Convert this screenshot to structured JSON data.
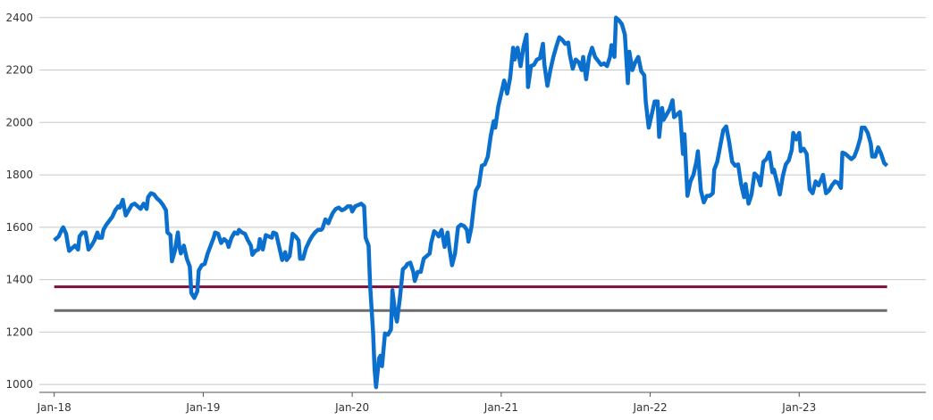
{
  "chart_data": {
    "type": "line",
    "title": "",
    "xlabel": "",
    "ylabel": "",
    "ylim": [
      970,
      2440
    ],
    "xlim": [
      -0.1,
      5.85
    ],
    "grid": "horizontal",
    "yticks": [
      1000,
      1200,
      1400,
      1600,
      1800,
      2000,
      2200,
      2400
    ],
    "xticks": [
      {
        "pos": 0,
        "label": "Jan-18"
      },
      {
        "pos": 1,
        "label": "Jan-19"
      },
      {
        "pos": 2,
        "label": "Jan-20"
      },
      {
        "pos": 3,
        "label": "Jan-21"
      },
      {
        "pos": 4,
        "label": "Jan-22"
      },
      {
        "pos": 5,
        "label": "Jan-23"
      }
    ],
    "series": [
      {
        "color": "#0b6fce",
        "points": [
          [
            0.0,
            1550
          ],
          [
            0.03,
            1565
          ],
          [
            0.05,
            1590
          ],
          [
            0.06,
            1600
          ],
          [
            0.08,
            1575
          ],
          [
            0.09,
            1540
          ],
          [
            0.1,
            1510
          ],
          [
            0.12,
            1520
          ],
          [
            0.14,
            1530
          ],
          [
            0.16,
            1515
          ],
          [
            0.17,
            1565
          ],
          [
            0.19,
            1580
          ],
          [
            0.21,
            1580
          ],
          [
            0.22,
            1550
          ],
          [
            0.23,
            1515
          ],
          [
            0.25,
            1530
          ],
          [
            0.27,
            1550
          ],
          [
            0.29,
            1580
          ],
          [
            0.3,
            1560
          ],
          [
            0.32,
            1560
          ],
          [
            0.33,
            1590
          ],
          [
            0.35,
            1610
          ],
          [
            0.37,
            1625
          ],
          [
            0.39,
            1640
          ],
          [
            0.41,
            1665
          ],
          [
            0.43,
            1680
          ],
          [
            0.44,
            1675
          ],
          [
            0.46,
            1705
          ],
          [
            0.48,
            1645
          ],
          [
            0.5,
            1665
          ],
          [
            0.52,
            1685
          ],
          [
            0.54,
            1690
          ],
          [
            0.56,
            1680
          ],
          [
            0.58,
            1670
          ],
          [
            0.6,
            1690
          ],
          [
            0.62,
            1670
          ],
          [
            0.63,
            1715
          ],
          [
            0.65,
            1730
          ],
          [
            0.67,
            1725
          ],
          [
            0.69,
            1710
          ],
          [
            0.71,
            1700
          ],
          [
            0.73,
            1685
          ],
          [
            0.75,
            1665
          ],
          [
            0.76,
            1580
          ],
          [
            0.78,
            1570
          ],
          [
            0.79,
            1470
          ],
          [
            0.81,
            1510
          ],
          [
            0.83,
            1580
          ],
          [
            0.84,
            1525
          ],
          [
            0.85,
            1500
          ],
          [
            0.87,
            1530
          ],
          [
            0.89,
            1480
          ],
          [
            0.91,
            1450
          ],
          [
            0.92,
            1350
          ],
          [
            0.94,
            1330
          ],
          [
            0.96,
            1355
          ],
          [
            0.97,
            1435
          ],
          [
            0.99,
            1455
          ],
          [
            1.01,
            1460
          ],
          [
            1.03,
            1500
          ],
          [
            1.05,
            1530
          ],
          [
            1.07,
            1560
          ],
          [
            1.08,
            1580
          ],
          [
            1.1,
            1575
          ],
          [
            1.12,
            1540
          ],
          [
            1.14,
            1555
          ],
          [
            1.16,
            1545
          ],
          [
            1.17,
            1525
          ],
          [
            1.19,
            1560
          ],
          [
            1.21,
            1580
          ],
          [
            1.23,
            1575
          ],
          [
            1.24,
            1590
          ],
          [
            1.26,
            1580
          ],
          [
            1.28,
            1575
          ],
          [
            1.3,
            1550
          ],
          [
            1.32,
            1530
          ],
          [
            1.33,
            1495
          ],
          [
            1.35,
            1510
          ],
          [
            1.37,
            1515
          ],
          [
            1.38,
            1555
          ],
          [
            1.4,
            1515
          ],
          [
            1.42,
            1570
          ],
          [
            1.44,
            1565
          ],
          [
            1.46,
            1560
          ],
          [
            1.47,
            1580
          ],
          [
            1.49,
            1575
          ],
          [
            1.51,
            1525
          ],
          [
            1.53,
            1475
          ],
          [
            1.55,
            1505
          ],
          [
            1.56,
            1475
          ],
          [
            1.58,
            1490
          ],
          [
            1.6,
            1575
          ],
          [
            1.62,
            1565
          ],
          [
            1.64,
            1550
          ],
          [
            1.65,
            1480
          ],
          [
            1.67,
            1480
          ],
          [
            1.69,
            1520
          ],
          [
            1.71,
            1545
          ],
          [
            1.73,
            1565
          ],
          [
            1.75,
            1580
          ],
          [
            1.77,
            1590
          ],
          [
            1.79,
            1590
          ],
          [
            1.8,
            1595
          ],
          [
            1.82,
            1630
          ],
          [
            1.84,
            1615
          ],
          [
            1.85,
            1630
          ],
          [
            1.87,
            1655
          ],
          [
            1.89,
            1670
          ],
          [
            1.91,
            1675
          ],
          [
            1.93,
            1665
          ],
          [
            1.95,
            1670
          ],
          [
            1.97,
            1680
          ],
          [
            1.99,
            1680
          ],
          [
            2.0,
            1660
          ],
          [
            2.02,
            1680
          ],
          [
            2.04,
            1685
          ],
          [
            2.06,
            1690
          ],
          [
            2.08,
            1680
          ],
          [
            2.09,
            1560
          ],
          [
            2.11,
            1530
          ],
          [
            2.12,
            1380
          ],
          [
            2.14,
            1200
          ],
          [
            2.15,
            1060
          ],
          [
            2.16,
            990
          ],
          [
            2.18,
            1100
          ],
          [
            2.19,
            1110
          ],
          [
            2.2,
            1070
          ],
          [
            2.22,
            1195
          ],
          [
            2.24,
            1190
          ],
          [
            2.26,
            1210
          ],
          [
            2.27,
            1360
          ],
          [
            2.29,
            1265
          ],
          [
            2.3,
            1240
          ],
          [
            2.32,
            1330
          ],
          [
            2.34,
            1440
          ],
          [
            2.36,
            1450
          ],
          [
            2.37,
            1460
          ],
          [
            2.39,
            1465
          ],
          [
            2.41,
            1430
          ],
          [
            2.42,
            1395
          ],
          [
            2.44,
            1430
          ],
          [
            2.46,
            1430
          ],
          [
            2.48,
            1480
          ],
          [
            2.5,
            1490
          ],
          [
            2.52,
            1500
          ],
          [
            2.53,
            1540
          ],
          [
            2.55,
            1585
          ],
          [
            2.57,
            1575
          ],
          [
            2.58,
            1565
          ],
          [
            2.6,
            1590
          ],
          [
            2.62,
            1525
          ],
          [
            2.64,
            1580
          ],
          [
            2.65,
            1530
          ],
          [
            2.67,
            1455
          ],
          [
            2.69,
            1500
          ],
          [
            2.71,
            1600
          ],
          [
            2.73,
            1610
          ],
          [
            2.75,
            1605
          ],
          [
            2.77,
            1590
          ],
          [
            2.78,
            1545
          ],
          [
            2.8,
            1600
          ],
          [
            2.82,
            1700
          ],
          [
            2.83,
            1740
          ],
          [
            2.85,
            1760
          ],
          [
            2.87,
            1835
          ],
          [
            2.89,
            1840
          ],
          [
            2.91,
            1870
          ],
          [
            2.93,
            1950
          ],
          [
            2.95,
            2005
          ],
          [
            2.96,
            1980
          ],
          [
            2.98,
            2060
          ],
          [
            3.0,
            2110
          ],
          [
            3.02,
            2160
          ],
          [
            3.04,
            2110
          ],
          [
            3.06,
            2170
          ],
          [
            3.08,
            2285
          ],
          [
            3.09,
            2240
          ],
          [
            3.11,
            2285
          ],
          [
            3.13,
            2215
          ],
          [
            3.15,
            2290
          ],
          [
            3.17,
            2335
          ],
          [
            3.18,
            2135
          ],
          [
            3.2,
            2215
          ],
          [
            3.22,
            2220
          ],
          [
            3.24,
            2240
          ],
          [
            3.26,
            2245
          ],
          [
            3.28,
            2300
          ],
          [
            3.29,
            2220
          ],
          [
            3.31,
            2140
          ],
          [
            3.33,
            2200
          ],
          [
            3.35,
            2250
          ],
          [
            3.37,
            2290
          ],
          [
            3.39,
            2325
          ],
          [
            3.41,
            2315
          ],
          [
            3.43,
            2300
          ],
          [
            3.45,
            2305
          ],
          [
            3.46,
            2260
          ],
          [
            3.48,
            2205
          ],
          [
            3.5,
            2240
          ],
          [
            3.52,
            2230
          ],
          [
            3.54,
            2200
          ],
          [
            3.55,
            2250
          ],
          [
            3.57,
            2165
          ],
          [
            3.59,
            2250
          ],
          [
            3.61,
            2285
          ],
          [
            3.63,
            2250
          ],
          [
            3.65,
            2235
          ],
          [
            3.67,
            2220
          ],
          [
            3.69,
            2225
          ],
          [
            3.71,
            2215
          ],
          [
            3.73,
            2250
          ],
          [
            3.74,
            2295
          ],
          [
            3.76,
            2250
          ],
          [
            3.77,
            2400
          ],
          [
            3.79,
            2390
          ],
          [
            3.81,
            2375
          ],
          [
            3.83,
            2335
          ],
          [
            3.85,
            2150
          ],
          [
            3.86,
            2270
          ],
          [
            3.88,
            2200
          ],
          [
            3.9,
            2230
          ],
          [
            3.92,
            2250
          ],
          [
            3.94,
            2195
          ],
          [
            3.96,
            2180
          ],
          [
            3.97,
            2080
          ],
          [
            3.99,
            1980
          ],
          [
            4.01,
            2030
          ],
          [
            4.03,
            2080
          ],
          [
            4.05,
            2080
          ],
          [
            4.06,
            1945
          ],
          [
            4.08,
            2055
          ],
          [
            4.09,
            2010
          ],
          [
            4.11,
            2030
          ],
          [
            4.13,
            2050
          ],
          [
            4.15,
            2085
          ],
          [
            4.16,
            2020
          ],
          [
            4.18,
            2030
          ],
          [
            4.2,
            2040
          ],
          [
            4.22,
            1880
          ],
          [
            4.23,
            1955
          ],
          [
            4.25,
            1720
          ],
          [
            4.27,
            1775
          ],
          [
            4.29,
            1800
          ],
          [
            4.31,
            1850
          ],
          [
            4.32,
            1890
          ],
          [
            4.34,
            1740
          ],
          [
            4.36,
            1695
          ],
          [
            4.38,
            1720
          ],
          [
            4.4,
            1720
          ],
          [
            4.42,
            1730
          ],
          [
            4.43,
            1820
          ],
          [
            4.45,
            1850
          ],
          [
            4.47,
            1910
          ],
          [
            4.49,
            1970
          ],
          [
            4.51,
            1985
          ],
          [
            4.53,
            1925
          ],
          [
            4.55,
            1850
          ],
          [
            4.57,
            1835
          ],
          [
            4.59,
            1840
          ],
          [
            4.61,
            1765
          ],
          [
            4.63,
            1715
          ],
          [
            4.64,
            1765
          ],
          [
            4.66,
            1690
          ],
          [
            4.68,
            1725
          ],
          [
            4.7,
            1805
          ],
          [
            4.72,
            1795
          ],
          [
            4.74,
            1760
          ],
          [
            4.76,
            1850
          ],
          [
            4.78,
            1860
          ],
          [
            4.8,
            1885
          ],
          [
            4.82,
            1810
          ],
          [
            4.83,
            1820
          ],
          [
            4.85,
            1775
          ],
          [
            4.87,
            1725
          ],
          [
            4.89,
            1795
          ],
          [
            4.91,
            1840
          ],
          [
            4.93,
            1855
          ],
          [
            4.95,
            1895
          ],
          [
            4.96,
            1960
          ],
          [
            4.98,
            1935
          ],
          [
            5.0,
            1960
          ],
          [
            5.01,
            1890
          ],
          [
            5.03,
            1900
          ],
          [
            5.05,
            1880
          ],
          [
            5.07,
            1745
          ],
          [
            5.09,
            1730
          ],
          [
            5.11,
            1775
          ],
          [
            5.13,
            1760
          ],
          [
            5.15,
            1785
          ],
          [
            5.16,
            1800
          ],
          [
            5.18,
            1730
          ],
          [
            5.2,
            1740
          ],
          [
            5.22,
            1760
          ],
          [
            5.24,
            1775
          ],
          [
            5.26,
            1770
          ],
          [
            5.28,
            1750
          ],
          [
            5.29,
            1885
          ],
          [
            5.31,
            1880
          ],
          [
            5.33,
            1870
          ],
          [
            5.35,
            1860
          ],
          [
            5.37,
            1870
          ],
          [
            5.39,
            1900
          ],
          [
            5.41,
            1940
          ],
          [
            5.42,
            1980
          ],
          [
            5.44,
            1980
          ],
          [
            5.46,
            1960
          ],
          [
            5.48,
            1920
          ],
          [
            5.49,
            1870
          ],
          [
            5.51,
            1870
          ],
          [
            5.53,
            1905
          ],
          [
            5.55,
            1880
          ],
          [
            5.57,
            1845
          ],
          [
            5.59,
            1835
          ]
        ]
      },
      {
        "color": "#7a0f3a",
        "points": [
          [
            0.0,
            1373
          ],
          [
            5.59,
            1373
          ]
        ]
      },
      {
        "color": "#6b6b6b",
        "points": [
          [
            0.0,
            1282
          ],
          [
            5.59,
            1282
          ]
        ]
      }
    ]
  }
}
